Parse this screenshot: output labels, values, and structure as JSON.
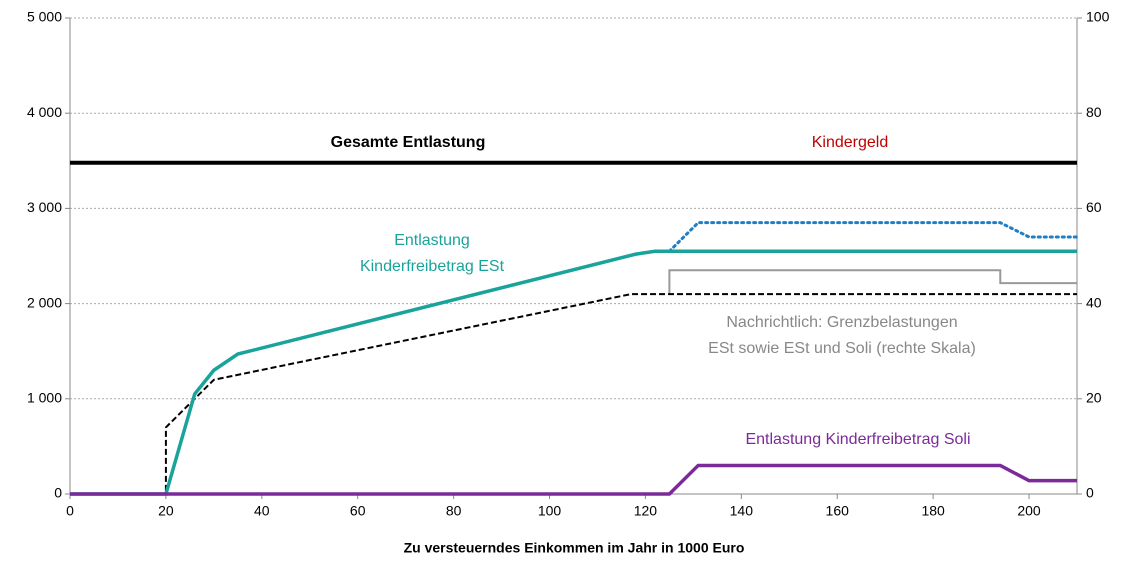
{
  "chart_data": {
    "type": "line",
    "xlabel": "Zu versteuerndes Einkommen im Jahr in 1000 Euro",
    "xlim": [
      0,
      210
    ],
    "xticks": [
      0,
      20,
      40,
      60,
      80,
      100,
      120,
      140,
      160,
      180,
      200
    ],
    "ylim": [
      0,
      5000
    ],
    "yticks": [
      0,
      {
        "value": 1000,
        "label": "1 000"
      },
      {
        "value": 2000,
        "label": "2 000"
      },
      {
        "value": 3000,
        "label": "3 000"
      },
      {
        "value": 4000,
        "label": "4 000"
      },
      {
        "value": 5000,
        "label": "5 000"
      }
    ],
    "y2lim": [
      0,
      100
    ],
    "y2ticks": [
      0,
      20,
      40,
      60,
      80,
      100
    ],
    "grid": true,
    "series": [
      {
        "color": "#000000",
        "width": 4,
        "dash": "solid",
        "x": [
          0,
          210
        ],
        "values": [
          3480,
          3480
        ]
      },
      {
        "color": "#1f7ec4",
        "width": 3,
        "dash": "dotted",
        "x": [
          125,
          131,
          194,
          200,
          210
        ],
        "values": [
          2550,
          2850,
          2850,
          2700,
          2700
        ]
      },
      {
        "color": "#999999",
        "width": 2,
        "dash": "solid",
        "axis": "y2",
        "x": [
          125,
          125,
          194,
          194,
          210
        ],
        "values": [
          42,
          47,
          47,
          44.3,
          44.3
        ]
      },
      {
        "color": "#000000",
        "width": 2,
        "dash": "dashed",
        "axis": "y2",
        "x": [
          0,
          20,
          20,
          30,
          117,
          210
        ],
        "values": [
          0,
          0,
          14,
          24,
          42,
          42
        ]
      },
      {
        "color": "#1aa39a",
        "width": 3.5,
        "dash": "solid",
        "x": [
          0,
          20,
          26,
          30,
          35,
          118,
          122,
          210
        ],
        "values": [
          0,
          0,
          1050,
          1300,
          1470,
          2520,
          2550,
          2550
        ]
      },
      {
        "color": "#7b2a9a",
        "width": 3.5,
        "dash": "solid",
        "x": [
          0,
          125,
          131,
          194,
          200,
          210
        ],
        "values": [
          0,
          0,
          300,
          300,
          140,
          140
        ]
      }
    ],
    "annotations": [
      {
        "text": [
          "Gesamte Entlastung"
        ],
        "color": "#000000",
        "bold": true
      },
      {
        "text": [
          "Kindergeld"
        ],
        "color": "#c00000",
        "bold": false
      },
      {
        "text": [
          "Entlastung",
          "Kinderfreibetrag ESt"
        ],
        "color": "#1aa39a",
        "bold": false
      },
      {
        "text": [
          "Nachrichtlich: Grenzbelastungen",
          "ESt sowie ESt und Soli (rechte Skala)"
        ],
        "color": "#888888",
        "bold": false
      },
      {
        "text": [
          "Entlastung Kinderfreibetrag Soli"
        ],
        "color": "#7b2a9a",
        "bold": false
      }
    ]
  }
}
